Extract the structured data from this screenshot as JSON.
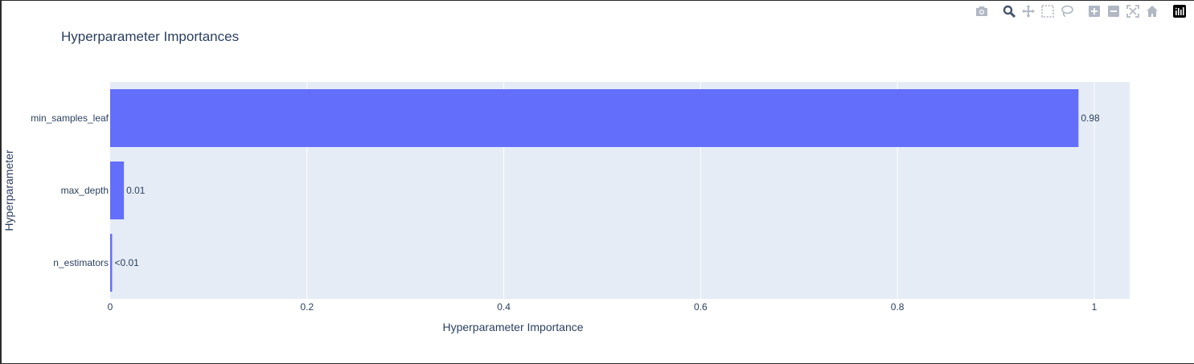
{
  "title": "Hyperparameter Importances",
  "toolbar": {
    "buttons": [
      {
        "name": "camera-icon",
        "label": "Download plot as a png"
      },
      {
        "name": "zoom-icon",
        "label": "Zoom"
      },
      {
        "name": "pan-icon",
        "label": "Pan"
      },
      {
        "name": "box-select-icon",
        "label": "Box Select"
      },
      {
        "name": "lasso-select-icon",
        "label": "Lasso Select"
      },
      {
        "name": "zoom-in-icon",
        "label": "Zoom in"
      },
      {
        "name": "zoom-out-icon",
        "label": "Zoom out"
      },
      {
        "name": "autoscale-icon",
        "label": "Autoscale"
      },
      {
        "name": "reset-axes-icon",
        "label": "Reset axes"
      },
      {
        "name": "plotly-logo-icon",
        "label": "Produced with Plotly"
      }
    ],
    "active": "zoom-icon"
  },
  "chart_data": {
    "type": "bar",
    "orientation": "horizontal",
    "title": "Hyperparameter Importances",
    "xlabel": "Hyperparameter Importance",
    "ylabel": "Hyperparameter",
    "categories": [
      "n_estimators",
      "max_depth",
      "min_samples_leaf"
    ],
    "values": [
      0.002,
      0.014,
      0.984
    ],
    "data_labels": [
      "<0.01",
      "0.01",
      "0.98"
    ],
    "xlim": [
      0,
      1.036
    ],
    "xticks": [
      0,
      0.2,
      0.4,
      0.6,
      0.8,
      1
    ],
    "xtick_labels": [
      "0",
      "0.2",
      "0.4",
      "0.6",
      "0.8",
      "1"
    ],
    "grid": true,
    "colors": {
      "bar": "#636efa",
      "plot_bg": "#e5ecf6",
      "grid": "#ffffff",
      "text": "#2a3f5f"
    }
  }
}
